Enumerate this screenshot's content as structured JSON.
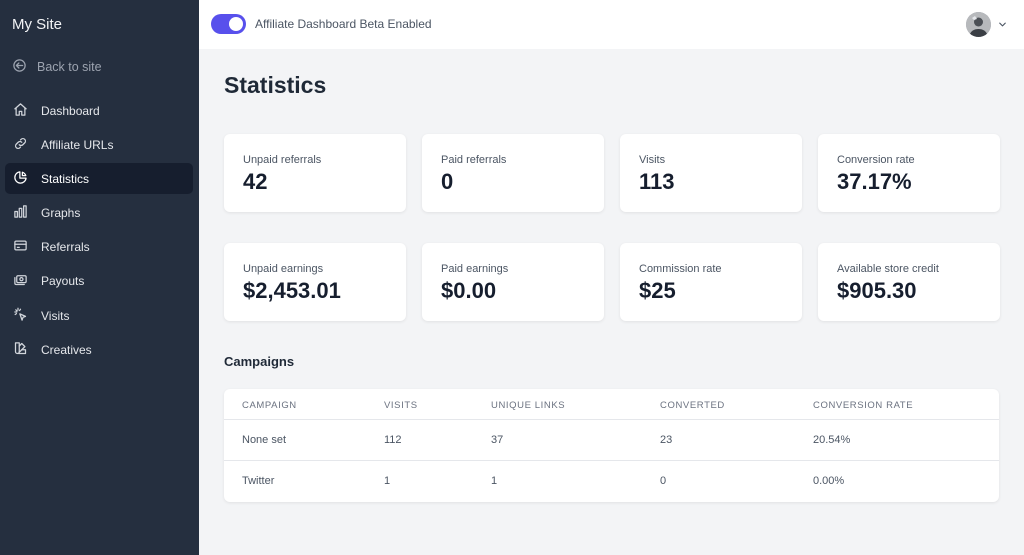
{
  "sidebar": {
    "site_title": "My Site",
    "back_label": "Back to site",
    "items": [
      {
        "label": "Dashboard",
        "icon": "home-icon"
      },
      {
        "label": "Affiliate URLs",
        "icon": "link-icon"
      },
      {
        "label": "Statistics",
        "icon": "pie-chart-icon",
        "active": true
      },
      {
        "label": "Graphs",
        "icon": "bar-chart-icon"
      },
      {
        "label": "Referrals",
        "icon": "credit-card-icon"
      },
      {
        "label": "Payouts",
        "icon": "cash-icon"
      },
      {
        "label": "Visits",
        "icon": "cursor-click-icon"
      },
      {
        "label": "Creatives",
        "icon": "color-swatch-icon"
      }
    ]
  },
  "topbar": {
    "toggle_label": "Affiliate Dashboard Beta Enabled",
    "toggle_on": true,
    "accent_color": "#5850ec"
  },
  "main": {
    "title": "Statistics",
    "stats": [
      {
        "label": "Unpaid referrals",
        "value": "42"
      },
      {
        "label": "Paid referrals",
        "value": "0"
      },
      {
        "label": "Visits",
        "value": "113"
      },
      {
        "label": "Conversion rate",
        "value": "37.17%"
      },
      {
        "label": "Unpaid earnings",
        "value": "$2,453.01"
      },
      {
        "label": "Paid earnings",
        "value": "$0.00"
      },
      {
        "label": "Commission rate",
        "value": "$25"
      },
      {
        "label": "Available store credit",
        "value": "$905.30"
      }
    ],
    "campaigns": {
      "title": "Campaigns",
      "columns": [
        "Campaign",
        "Visits",
        "Unique Links",
        "Converted",
        "Conversion Rate"
      ],
      "rows": [
        [
          "None set",
          "112",
          "37",
          "23",
          "20.54%"
        ],
        [
          "Twitter",
          "1",
          "1",
          "0",
          "0.00%"
        ]
      ]
    }
  }
}
